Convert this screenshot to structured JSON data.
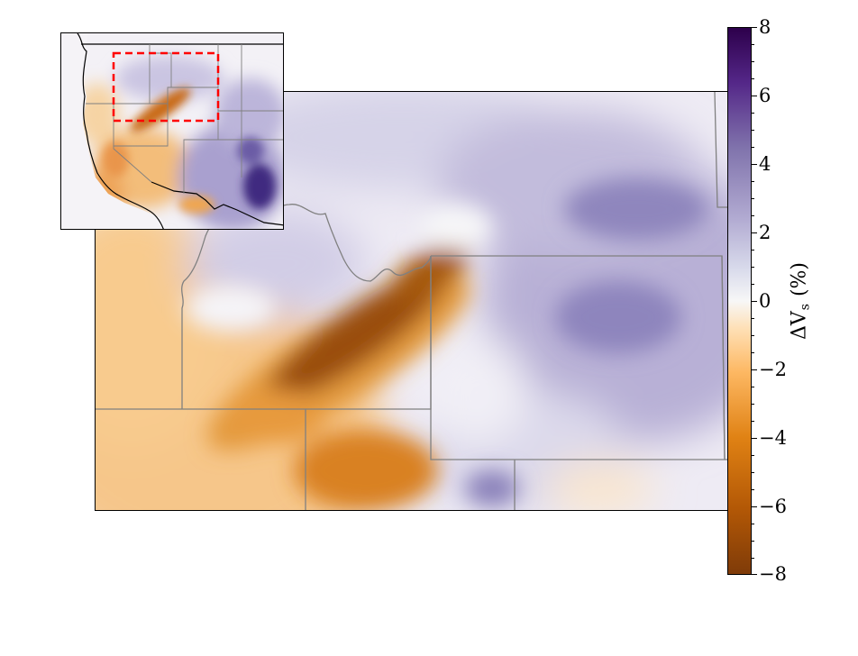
{
  "colorbar": {
    "label_main": "ΔV",
    "label_sub": "s",
    "label_unit": " (%)",
    "ticks": [
      "8",
      "6",
      "4",
      "2",
      "0",
      "−2",
      "−4",
      "−6",
      "−8"
    ],
    "range": [
      -8,
      8
    ],
    "colors": [
      "#7f3b08",
      "#b35806",
      "#e08214",
      "#fdb863",
      "#fee0b6",
      "#f7f7f7",
      "#d8daeb",
      "#b2abd2",
      "#8073ac",
      "#542788",
      "#2d004b"
    ]
  },
  "map": {
    "region": "northwestern-us-velocity-anomaly",
    "border_color": "#808080",
    "inset_box_color": "#ff0000"
  }
}
